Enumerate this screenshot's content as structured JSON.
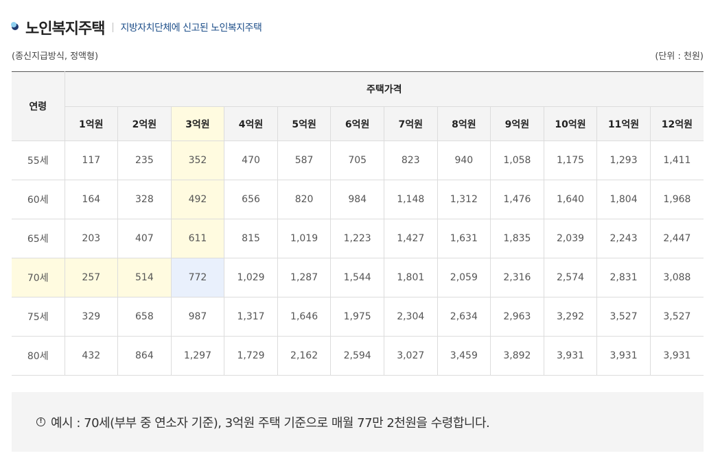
{
  "header": {
    "title": "노인복지주택",
    "subtitle": "지방자치단체에 신고된 노인복지주택"
  },
  "notes": {
    "method": "(종신지급방식, 정액형)",
    "unit": "(단위 : 천원)"
  },
  "table": {
    "age_header": "연령",
    "price_header": "주택가격",
    "columns": [
      "1억원",
      "2억원",
      "3억원",
      "4억원",
      "5억원",
      "6억원",
      "7억원",
      "8억원",
      "9억원",
      "10억원",
      "11억원",
      "12억원"
    ],
    "rows": [
      {
        "age": "55세",
        "values": [
          "117",
          "235",
          "352",
          "470",
          "587",
          "705",
          "823",
          "940",
          "1,058",
          "1,175",
          "1,293",
          "1,411"
        ]
      },
      {
        "age": "60세",
        "values": [
          "164",
          "328",
          "492",
          "656",
          "820",
          "984",
          "1,148",
          "1,312",
          "1,476",
          "1,640",
          "1,804",
          "1,968"
        ]
      },
      {
        "age": "65세",
        "values": [
          "203",
          "407",
          "611",
          "815",
          "1,019",
          "1,223",
          "1,427",
          "1,631",
          "1,835",
          "2,039",
          "2,243",
          "2,447"
        ]
      },
      {
        "age": "70세",
        "values": [
          "257",
          "514",
          "772",
          "1,029",
          "1,287",
          "1,544",
          "1,801",
          "2,059",
          "2,316",
          "2,574",
          "2,831",
          "3,088"
        ]
      },
      {
        "age": "75세",
        "values": [
          "329",
          "658",
          "987",
          "1,317",
          "1,646",
          "1,975",
          "2,304",
          "2,634",
          "2,963",
          "3,292",
          "3,527",
          "3,527"
        ]
      },
      {
        "age": "80세",
        "values": [
          "432",
          "864",
          "1,297",
          "1,729",
          "2,162",
          "2,594",
          "3,027",
          "3,459",
          "3,892",
          "3,931",
          "3,931",
          "3,931"
        ]
      }
    ]
  },
  "example": {
    "icon": "exclamation-circle-icon",
    "text": "예시 : 70세(부부 중 연소자 기준), 3억원 주택 기준으로 매월 77만 2천원을 수령합니다."
  },
  "colors": {
    "highlight_yellow": "#fffbe0",
    "highlight_blue": "#e9f0fc",
    "subtitle_blue": "#1e4f8a"
  }
}
